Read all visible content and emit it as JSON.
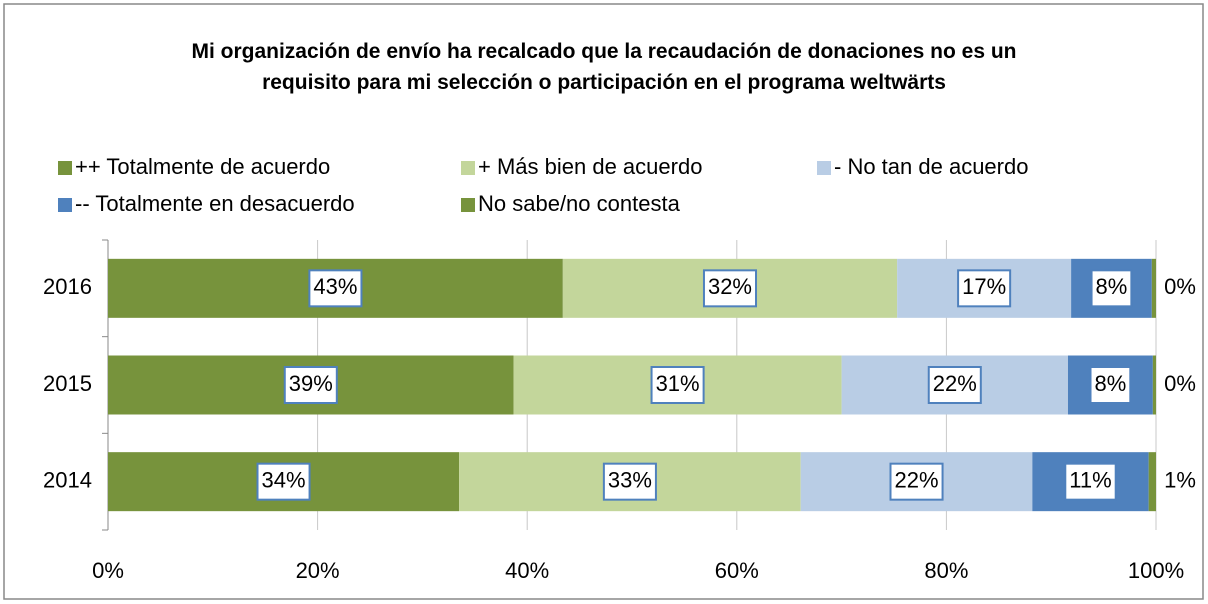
{
  "chart_data": {
    "type": "stacked_barh",
    "title": "Mi organización de envío ha recalcado que la recaudación de donaciones no es un requisito para mi selección o participación en el programa weltwärts",
    "categories": [
      "2016",
      "2015",
      "2014"
    ],
    "series": [
      {
        "name": "++ Totalmente de acuerdo",
        "color": "#77933c",
        "values": [
          43.4,
          38.7,
          33.5
        ],
        "value_labels": [
          "43%",
          "39%",
          "34%"
        ]
      },
      {
        "name": "+ Más bien de acuerdo",
        "color": "#c3d69b",
        "values": [
          31.9,
          31.3,
          32.6
        ],
        "value_labels": [
          "32%",
          "31%",
          "33%"
        ]
      },
      {
        "name": "- No tan de acuerdo",
        "color": "#b9cde5",
        "values": [
          16.6,
          21.6,
          22.1
        ],
        "value_labels": [
          "17%",
          "22%",
          "22%"
        ]
      },
      {
        "name": "-- Totalmente en desacuerdo",
        "color": "#4f81bd",
        "values": [
          7.7,
          8.1,
          11.1
        ],
        "value_labels": [
          "8%",
          "8%",
          "11%"
        ]
      },
      {
        "name": "No sabe/no contesta",
        "color": "#77933c",
        "values": [
          0.4,
          0.3,
          0.7
        ],
        "value_labels": [
          "0%",
          "0%",
          "1%"
        ]
      }
    ],
    "xlim": [
      0,
      100
    ],
    "xticks": [
      {
        "value": 0,
        "label": "0%"
      },
      {
        "value": 20,
        "label": "20%"
      },
      {
        "value": 40,
        "label": "40%"
      },
      {
        "value": 60,
        "label": "60%"
      },
      {
        "value": 80,
        "label": "80%"
      },
      {
        "value": 100,
        "label": "100%"
      }
    ],
    "grid": true
  }
}
